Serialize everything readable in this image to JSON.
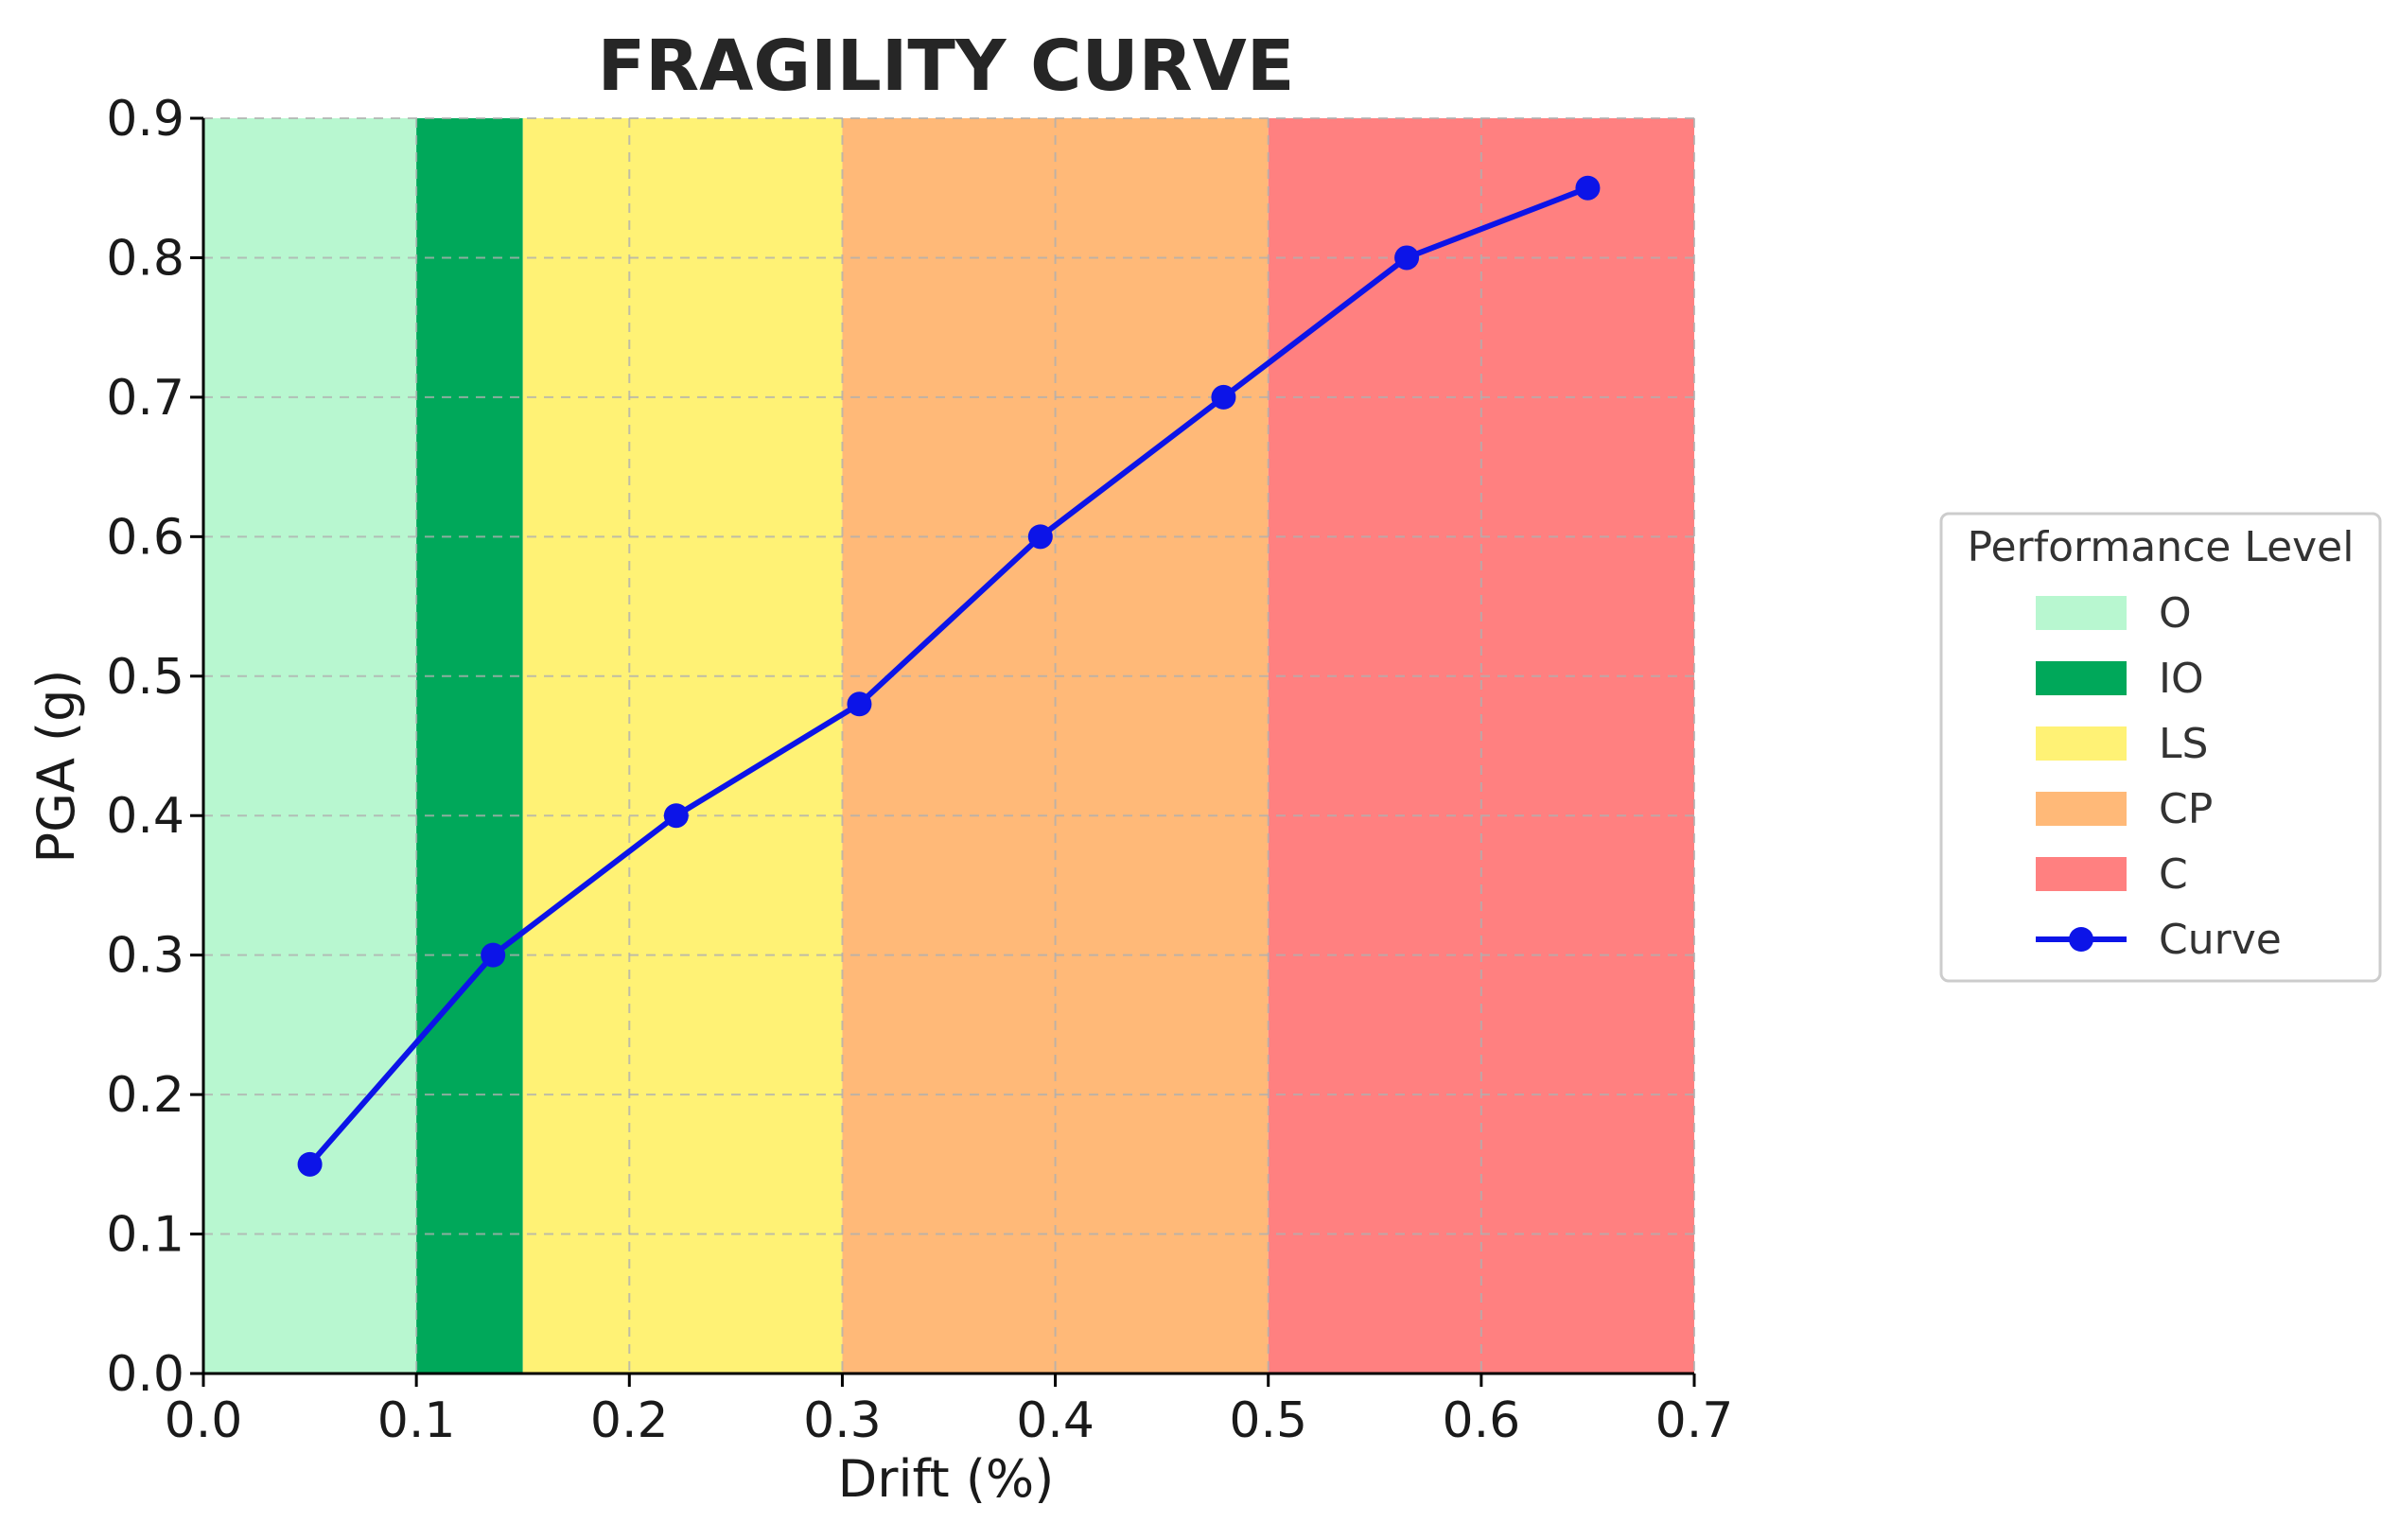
{
  "chart_data": {
    "type": "line",
    "title": "FRAGILITY CURVE",
    "xlabel": "Drift (%)",
    "ylabel": "PGA (g)",
    "xlim": [
      0.0,
      0.7
    ],
    "ylim": [
      0.0,
      0.9
    ],
    "xticks": [
      "0.0",
      "0.1",
      "0.2",
      "0.3",
      "0.4",
      "0.5",
      "0.6",
      "0.7"
    ],
    "yticks": [
      "0.0",
      "0.1",
      "0.2",
      "0.3",
      "0.4",
      "0.5",
      "0.6",
      "0.7",
      "0.8",
      "0.9"
    ],
    "grid": true,
    "legend": {
      "title": "Performance Level",
      "placement": "right"
    },
    "bands": [
      {
        "name": "O",
        "x0": 0.0,
        "x1": 0.1,
        "color": "#b8f7d0"
      },
      {
        "name": "IO",
        "x0": 0.1,
        "x1": 0.15,
        "color": "#00a85a"
      },
      {
        "name": "LS",
        "x0": 0.15,
        "x1": 0.3,
        "color": "#fff275"
      },
      {
        "name": "CP",
        "x0": 0.3,
        "x1": 0.5,
        "color": "#ffb978"
      },
      {
        "name": "C",
        "x0": 0.5,
        "x1": 0.7,
        "color": "#ff8080"
      }
    ],
    "series": [
      {
        "name": "Curve",
        "color": "#0c14e8",
        "x": [
          0.05,
          0.136,
          0.222,
          0.308,
          0.393,
          0.479,
          0.565,
          0.65
        ],
        "y": [
          0.15,
          0.3,
          0.4,
          0.48,
          0.6,
          0.7,
          0.8,
          0.85
        ]
      }
    ]
  }
}
